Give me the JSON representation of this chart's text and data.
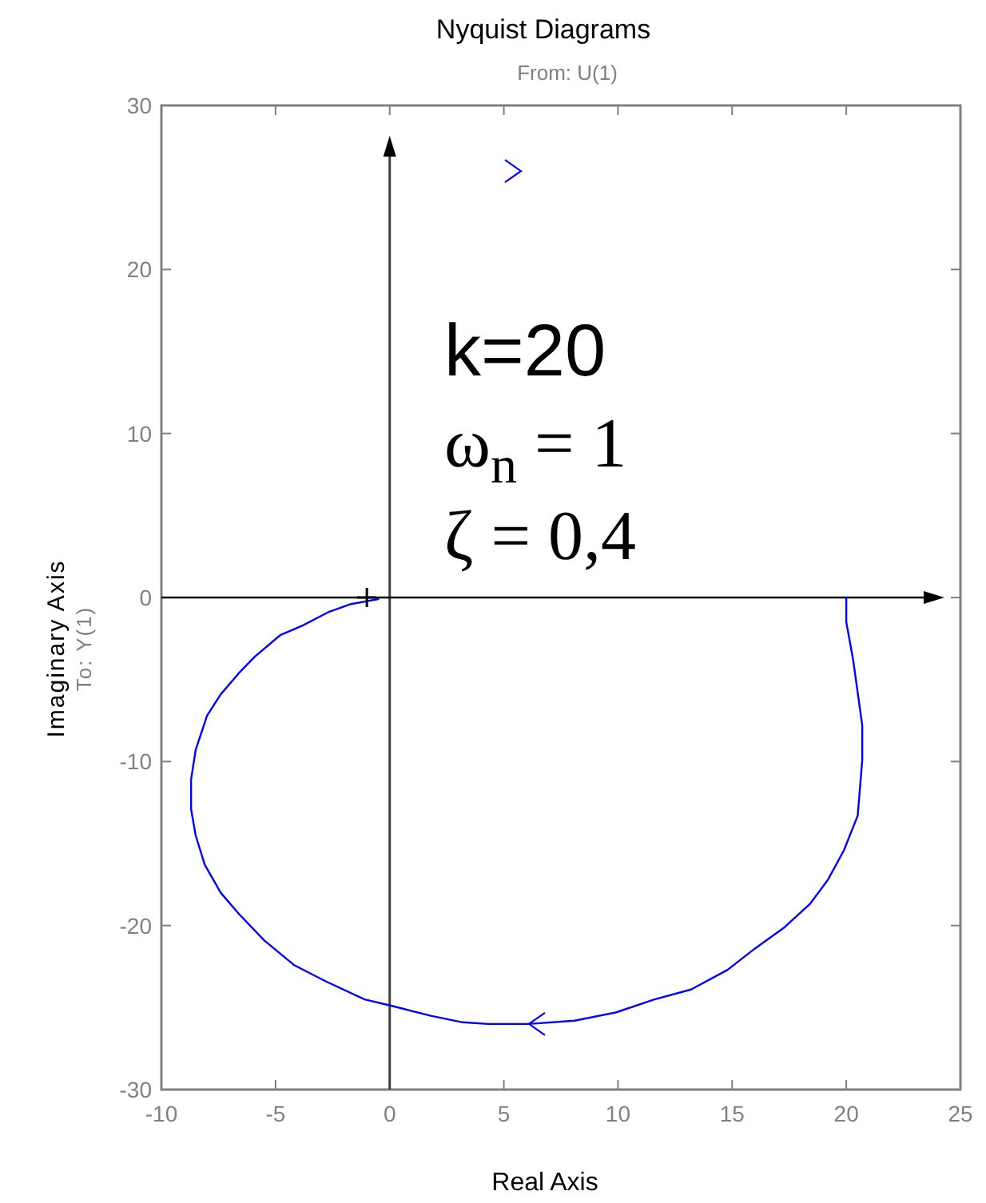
{
  "chart_data": {
    "type": "line",
    "title": "Nyquist Diagrams",
    "subtitle": "From: U(1)",
    "xlabel": "Real Axis",
    "ylabel": "Imaginary Axis",
    "annotations": [
      "To: Y(1)",
      "k=20",
      "ω$_{n}$ = 1",
      "ζ = 0,4"
    ],
    "series": [
      {
        "color": "#0000ff",
        "x": [
          20,
          20,
          20.3,
          20.7,
          20.7,
          20.5,
          19.9,
          19.2,
          18.4,
          17.3,
          16,
          14.8,
          13.2,
          11.6,
          9.9,
          8.1,
          6.1,
          4.3,
          3.2,
          1.8,
          0.1,
          -1.1,
          -2.8,
          -4.2,
          -5.5,
          -6.6,
          -7.4,
          -8.1,
          -8.5,
          -8.7,
          -8.7,
          -8.5,
          -8,
          -7.4,
          -6.6,
          -5.9,
          -4.8,
          -3.8,
          -2.7,
          -1.7,
          -0.9,
          -0.5
        ],
        "values": [
          0,
          -1.5,
          -3.8,
          -7.8,
          -9.9,
          -13.3,
          -15.4,
          -17.2,
          -18.7,
          -20.1,
          -21.4,
          -22.7,
          -23.9,
          -24.5,
          -25.3,
          -25.8,
          -26,
          -26,
          -25.9,
          -25.5,
          -24.9,
          -24.5,
          -23.4,
          -22.4,
          -20.9,
          -19.3,
          -18,
          -16.3,
          -14.5,
          -12.9,
          -11.1,
          -9.3,
          -7.2,
          -5.9,
          -4.6,
          -3.6,
          -2.3,
          -1.7,
          -0.9,
          -0.4,
          -0.2,
          -0.1
        ]
      },
      {
        "type": "scatter",
        "color": "#000000",
        "marker": "cross",
        "x": [
          -1
        ],
        "values": [
          0
        ]
      }
    ],
    "xlim": [
      -10,
      25
    ],
    "ylim": [
      -30,
      30
    ],
    "xticks": [
      -10,
      -5,
      0,
      5,
      10,
      15,
      20,
      25
    ],
    "yticks": [
      -30,
      -20,
      -10,
      0,
      10,
      20,
      30
    ],
    "ref_lines": [
      {
        "axis": "x",
        "value": 0,
        "color": "#404040"
      },
      {
        "axis": "y",
        "value": 0,
        "color": "#000000"
      }
    ]
  }
}
